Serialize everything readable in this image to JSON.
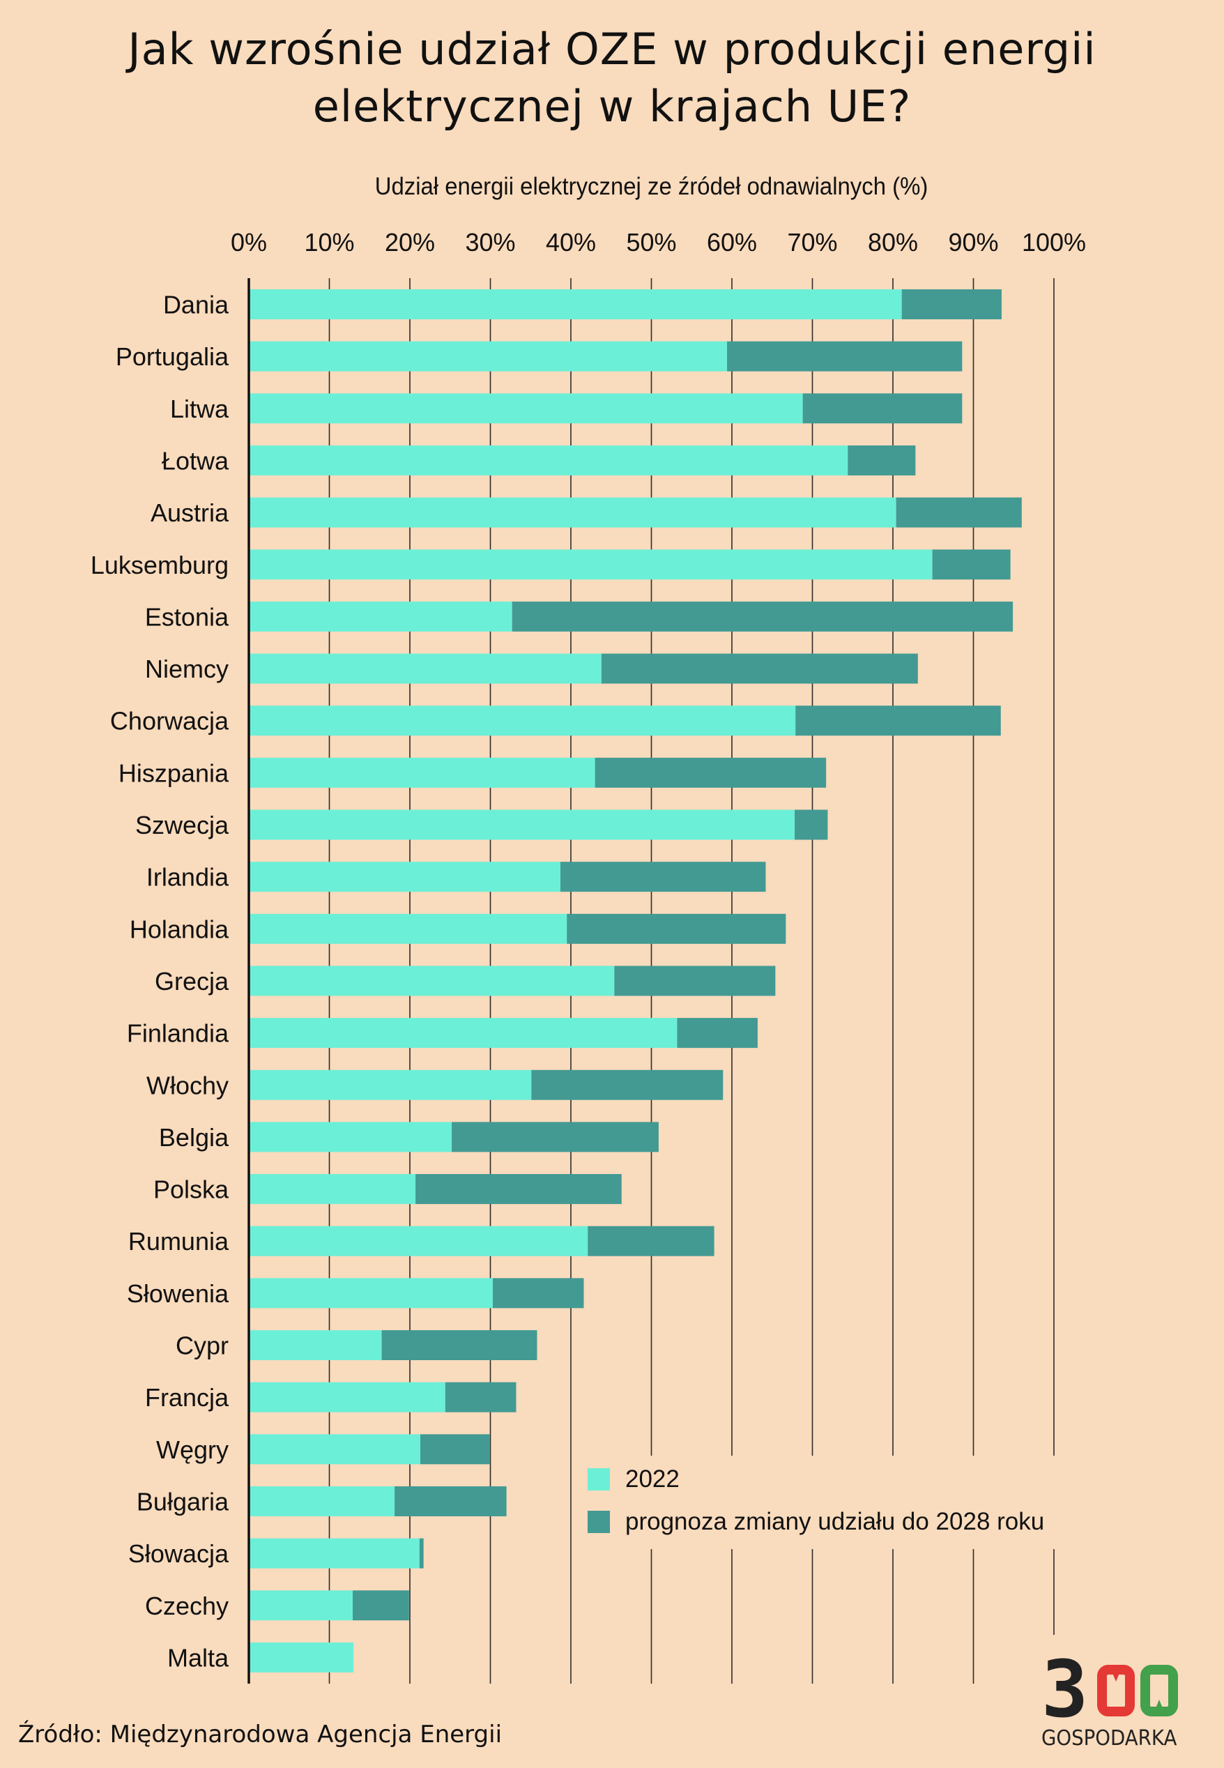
{
  "title": {
    "line1": "Jak wzrośnie udział OZE w produkcji energii",
    "line2": "elektrycznej w krajach UE?"
  },
  "source": "Źródło: Międzynarodowa Agencja Energii",
  "logo": {
    "digits": "300",
    "text": "GOSPODARKA",
    "colors": {
      "three": "#222222",
      "first_zero": "#E53935",
      "second_zero": "#43A04B"
    }
  },
  "colors": {
    "background": "#F9DBBD",
    "series_2022": "#6CEFD7",
    "series_forecast": "#429A93",
    "gridline": "#2B2B2B"
  },
  "chart_data": {
    "type": "bar",
    "orientation": "horizontal",
    "stacked": true,
    "title": "Jak wzrośnie udział OZE w produkcji energii elektrycznej w krajach UE?",
    "xlabel": "Udział energii elektrycznej ze źródeł odnawialnych (%)",
    "ylabel": "",
    "xlim": [
      0,
      100
    ],
    "x_ticks": [
      0,
      10,
      20,
      30,
      40,
      50,
      60,
      70,
      80,
      90,
      100
    ],
    "x_tick_labels": [
      "0%",
      "10%",
      "20%",
      "30%",
      "40%",
      "50%",
      "60%",
      "70%",
      "80%",
      "90%",
      "100%"
    ],
    "x_axis_position": "top",
    "grid": true,
    "legend_position": "bottom-right",
    "categories": [
      "Dania",
      "Portugalia",
      "Litwa",
      "Łotwa",
      "Austria",
      "Luksemburg",
      "Estonia",
      "Niemcy",
      "Chorwacja",
      "Hiszpania",
      "Szwecja",
      "Irlandia",
      "Holandia",
      "Grecja",
      "Finlandia",
      "Włochy",
      "Belgia",
      "Polska",
      "Rumunia",
      "Słowenia",
      "Cypr",
      "Francja",
      "Węgry",
      "Bułgaria",
      "Słowacja",
      "Czechy",
      "Malta"
    ],
    "series": [
      {
        "name": "2022",
        "values": [
          81.1,
          59.4,
          68.8,
          74.4,
          80.4,
          84.9,
          32.7,
          43.8,
          67.9,
          43.0,
          67.8,
          38.7,
          39.5,
          45.4,
          53.2,
          35.1,
          25.2,
          20.7,
          42.1,
          30.3,
          16.5,
          24.4,
          21.3,
          18.1,
          21.2,
          12.9,
          13.0
        ]
      },
      {
        "name": "prognoza zmiany udziału do 2028 roku",
        "values": [
          12.4,
          29.2,
          19.8,
          8.4,
          15.6,
          9.7,
          62.2,
          39.3,
          25.5,
          28.7,
          4.1,
          25.5,
          27.2,
          20.0,
          10.0,
          23.8,
          25.7,
          25.6,
          15.7,
          11.3,
          19.3,
          8.8,
          8.6,
          13.9,
          0.5,
          7.0,
          0.0
        ]
      }
    ],
    "totals_2028": [
      93.5,
      88.6,
      88.6,
      82.8,
      96.0,
      94.6,
      94.9,
      83.1,
      93.4,
      71.7,
      71.9,
      64.2,
      66.7,
      65.4,
      63.2,
      58.9,
      50.9,
      46.3,
      57.8,
      41.6,
      35.8,
      33.2,
      29.9,
      32.0,
      21.7,
      19.9,
      13.0
    ]
  }
}
